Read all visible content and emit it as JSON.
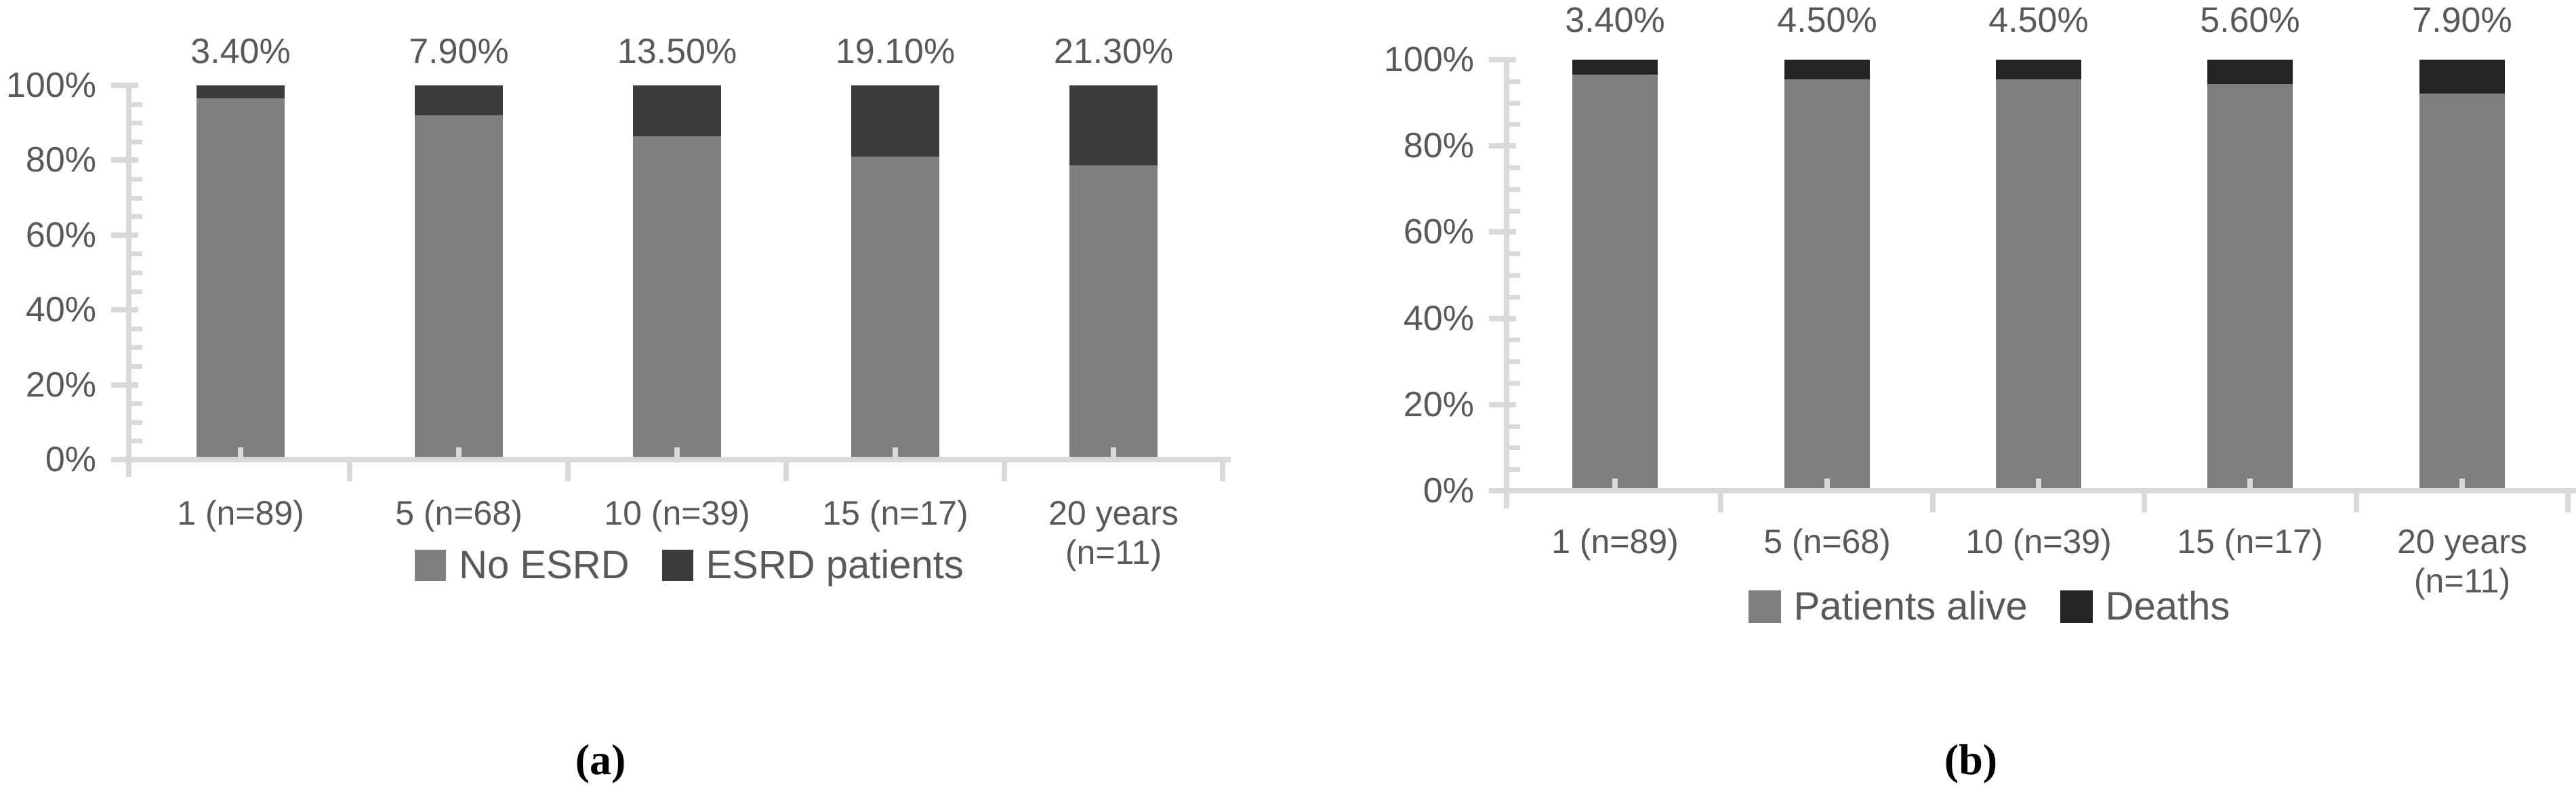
{
  "colors": {
    "background": "#ffffff",
    "axis": "#d9d9d9",
    "text": "#595959",
    "caption": "#000000",
    "bar_gray": "#7f7f7f",
    "bar_dark_a": "#3b3b3b",
    "bar_dark_b": "#242424"
  },
  "chart_data": [
    {
      "panel": "a",
      "type": "bar",
      "stacked": true,
      "title": "",
      "xlabel": "",
      "ylabel": "",
      "categories": [
        "1 (n=89)",
        "5 (n=68)",
        "10 (n=39)",
        "15 (n=17)",
        "20 years\n(n=11)"
      ],
      "series": [
        {
          "name": "No ESRD",
          "color": "#7f7f7f",
          "values": [
            96.6,
            92.1,
            86.5,
            80.9,
            78.7
          ]
        },
        {
          "name": "ESRD patients",
          "color": "#3b3b3b",
          "values": [
            3.4,
            7.9,
            13.5,
            19.1,
            21.3
          ]
        }
      ],
      "bar_labels": [
        "3.40%",
        "7.90%",
        "13.50%",
        "19.10%",
        "21.30%"
      ],
      "y_ticks": [
        "100%",
        "80%",
        "60%",
        "40%",
        "20%",
        "0%"
      ],
      "ylim": [
        0,
        100
      ],
      "y_major_step": 20,
      "y_minor_step": 5,
      "grid": false,
      "legend_position": "bottom",
      "caption": "(a)"
    },
    {
      "panel": "b",
      "type": "bar",
      "stacked": true,
      "title": "",
      "xlabel": "",
      "ylabel": "",
      "categories": [
        "1 (n=89)",
        "5 (n=68)",
        "10 (n=39)",
        "15 (n=17)",
        "20 years\n(n=11)"
      ],
      "series": [
        {
          "name": "Patients alive",
          "color": "#7f7f7f",
          "values": [
            96.6,
            95.5,
            95.5,
            94.4,
            92.1
          ]
        },
        {
          "name": "Deaths",
          "color": "#242424",
          "values": [
            3.4,
            4.5,
            4.5,
            5.6,
            7.9
          ]
        }
      ],
      "bar_labels": [
        "3.40%",
        "4.50%",
        "4.50%",
        "5.60%",
        "7.90%"
      ],
      "y_ticks": [
        "100%",
        "80%",
        "60%",
        "40%",
        "20%",
        "0%"
      ],
      "ylim": [
        0,
        100
      ],
      "y_major_step": 20,
      "y_minor_step": 5,
      "grid": false,
      "legend_position": "bottom",
      "caption": "(b)"
    }
  ]
}
